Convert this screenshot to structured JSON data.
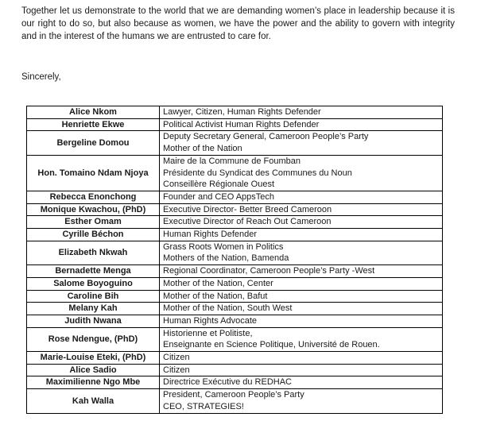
{
  "document": {
    "paragraph": "Together let us demonstrate to the world that we are demanding women’s place in leadership because it is our right to do so, but also because as women, we have the power and the ability to govern with integrity and in the interest of the humans we are entrusted to care for.",
    "closing": "Sincerely,"
  },
  "signatories": {
    "rows": [
      {
        "name": "Alice Nkom",
        "titles": [
          "Lawyer, Citizen, Human Rights Defender"
        ]
      },
      {
        "name": "Henriette Ekwe",
        "titles": [
          "Political Activist Human Rights Defender"
        ]
      },
      {
        "name": "Bergeline Domou",
        "titles": [
          "Deputy Secretary General, Cameroon People’s Party",
          "Mother of the Nation"
        ]
      },
      {
        "name": "Hon. Tomaino Ndam Njoya",
        "titles": [
          "Maire de la Commune de Foumban",
          "Présidente du Syndicat des Communes du Noun",
          "Conseillère Régionale Ouest"
        ]
      },
      {
        "name": "Rebecca Enonchong",
        "titles": [
          "Founder and CEO AppsTech"
        ]
      },
      {
        "name": "Monique Kwachou, (PhD)",
        "titles": [
          "Executive Director- Better Breed Cameroon"
        ]
      },
      {
        "name": "Esther Omam",
        "titles": [
          "Executive Director of Reach Out Cameroon"
        ]
      },
      {
        "name": "Cyrille Béchon",
        "titles": [
          "Human Rights Defender"
        ]
      },
      {
        "name": "Elizabeth Nkwah",
        "titles": [
          "Grass Roots Women in Politics",
          "Mothers of the Nation, Bamenda"
        ]
      },
      {
        "name": "Bernadette Menga",
        "titles": [
          "Regional Coordinator, Cameroon People’s Party -West"
        ]
      },
      {
        "name": "Salome Boyoguino",
        "titles": [
          "Mother of the Nation, Center"
        ]
      },
      {
        "name": "Caroline Bih",
        "titles": [
          "Mother of the Nation, Bafut"
        ]
      },
      {
        "name": "Melany Kah",
        "titles": [
          "Mother of the Nation, South West"
        ]
      },
      {
        "name": "Judith Nwana",
        "titles": [
          "Human Rights Advocate"
        ]
      },
      {
        "name": "Rose Ndengue, (PhD)",
        "titles": [
          "Historienne et Politiste,",
          "Enseignante en Science Politique, Université de Rouen."
        ]
      },
      {
        "name": "Marie-Louise Eteki, (PhD)",
        "titles": [
          "Citizen"
        ]
      },
      {
        "name": "Alice Sadio",
        "titles": [
          "Citizen"
        ]
      },
      {
        "name": "Maximilienne Ngo Mbe",
        "titles": [
          "Directrice Exécutive du REDHAC"
        ]
      },
      {
        "name": "Kah Walla",
        "titles": [
          "President, Cameroon People’s Party",
          "CEO, STRATEGIES!"
        ]
      }
    ]
  },
  "colors": {
    "background": "#ffffff",
    "text": "#1a1a1a",
    "table_border": "#000000"
  }
}
